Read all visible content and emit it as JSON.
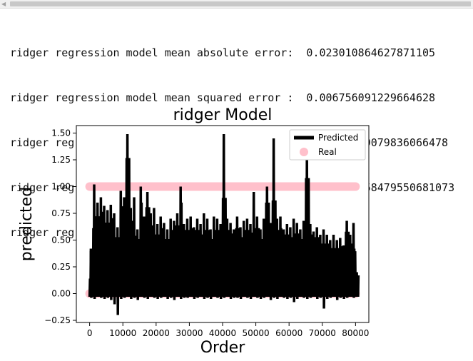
{
  "output_lines": [
    "ridger regression model mean absolute error:  0.023010864627871105",
    "ridger regression model mean squared error :  0.006756091229664628",
    "ridger regression model median absolute error:  0.009049079836066478",
    "ridger regression model explained variance score:  0.2558479550681073",
    "ridger regression model r2 score:  0.25577857130749837"
  ],
  "chart_data": {
    "type": "line",
    "title": "ridger Model",
    "xlabel": "Order",
    "ylabel": "predicted",
    "xlim": [
      -4000,
      84000
    ],
    "ylim": [
      -0.27,
      1.57
    ],
    "xticks": [
      0,
      10000,
      20000,
      30000,
      40000,
      50000,
      60000,
      70000,
      80000
    ],
    "yticks": [
      -0.25,
      0.0,
      0.25,
      0.5,
      0.75,
      1.0,
      1.25,
      1.5
    ],
    "xtick_labels": [
      "0",
      "10000",
      "20000",
      "30000",
      "40000",
      "50000",
      "60000",
      "70000",
      "80000"
    ],
    "ytick_labels": [
      "−0.25",
      "0.00",
      "0.25",
      "0.50",
      "0.75",
      "1.00",
      "1.25",
      "1.50"
    ],
    "legend_position": "top-right",
    "series": [
      {
        "name": "Predicted",
        "color": "#000000",
        "note_shape": "dense oscillating line",
        "x": [
          0,
          1000,
          2000,
          3000,
          4000,
          5000,
          6000,
          7000,
          8000,
          9000,
          10000,
          11000,
          12000,
          13000,
          14000,
          15000,
          16000,
          17000,
          18000,
          19000,
          20000,
          21000,
          22000,
          23000,
          24000,
          25000,
          26000,
          27000,
          28000,
          29000,
          30000,
          31000,
          32000,
          33000,
          34000,
          35000,
          36000,
          37000,
          38000,
          39000,
          40000,
          41000,
          42000,
          43000,
          44000,
          45000,
          46000,
          47000,
          48000,
          49000,
          50000,
          51000,
          52000,
          53000,
          54000,
          55000,
          56000,
          57000,
          58000,
          59000,
          60000,
          61000,
          62000,
          63000,
          64000,
          65000,
          66000,
          67000,
          68000,
          69000,
          70000,
          71000,
          72000,
          73000,
          74000,
          75000,
          76000,
          77000,
          78000,
          79000,
          80000
        ],
        "peaks": [
          0.4,
          1.02,
          0.85,
          0.9,
          0.82,
          0.78,
          0.83,
          0.75,
          0.62,
          0.96,
          0.9,
          1.49,
          0.8,
          0.9,
          0.6,
          1.0,
          0.72,
          0.95,
          0.75,
          0.8,
          0.65,
          0.72,
          0.66,
          0.6,
          0.7,
          0.68,
          0.75,
          1.0,
          0.65,
          0.7,
          0.72,
          0.62,
          0.7,
          0.65,
          0.75,
          0.7,
          0.6,
          0.72,
          0.7,
          0.65,
          1.49,
          0.7,
          0.66,
          0.6,
          0.72,
          0.62,
          0.68,
          0.7,
          0.65,
          0.95,
          0.72,
          0.6,
          0.7,
          1.0,
          0.66,
          1.45,
          0.7,
          0.72,
          0.6,
          0.65,
          0.62,
          0.7,
          0.66,
          0.6,
          0.68,
          1.27,
          0.65,
          0.58,
          0.62,
          0.55,
          0.6,
          0.55,
          0.5,
          0.55,
          0.5,
          0.52,
          0.45,
          0.68,
          0.55,
          0.66,
          0.2
        ],
        "troughs": [
          -0.04,
          -0.05,
          -0.03,
          -0.04,
          -0.05,
          -0.04,
          -0.06,
          -0.1,
          -0.2,
          -0.05,
          -0.04,
          -0.03,
          -0.05,
          -0.04,
          -0.06,
          -0.03,
          -0.04,
          -0.05,
          -0.03,
          -0.04,
          -0.05,
          -0.04,
          -0.03,
          -0.05,
          -0.04,
          -0.06,
          -0.03,
          -0.05,
          -0.04,
          -0.04,
          -0.03,
          -0.05,
          -0.04,
          -0.03,
          -0.05,
          -0.04,
          -0.05,
          -0.03,
          -0.04,
          -0.05,
          -0.04,
          -0.03,
          -0.05,
          -0.04,
          -0.04,
          -0.05,
          -0.03,
          -0.04,
          -0.05,
          -0.03,
          -0.04,
          -0.05,
          -0.04,
          -0.03,
          -0.06,
          -0.04,
          -0.05,
          -0.03,
          -0.04,
          -0.05,
          -0.04,
          -0.08,
          -0.05,
          -0.03,
          -0.04,
          -0.05,
          -0.04,
          -0.03,
          -0.05,
          -0.04,
          -0.14,
          -0.05,
          -0.04,
          -0.03,
          -0.06,
          -0.04,
          -0.05,
          -0.04,
          -0.03,
          -0.04,
          -0.03
        ]
      },
      {
        "name": "Real",
        "color": "#ffc0cb",
        "levels": [
          0.0,
          1.0
        ],
        "x_range": [
          0,
          80000
        ]
      }
    ]
  }
}
